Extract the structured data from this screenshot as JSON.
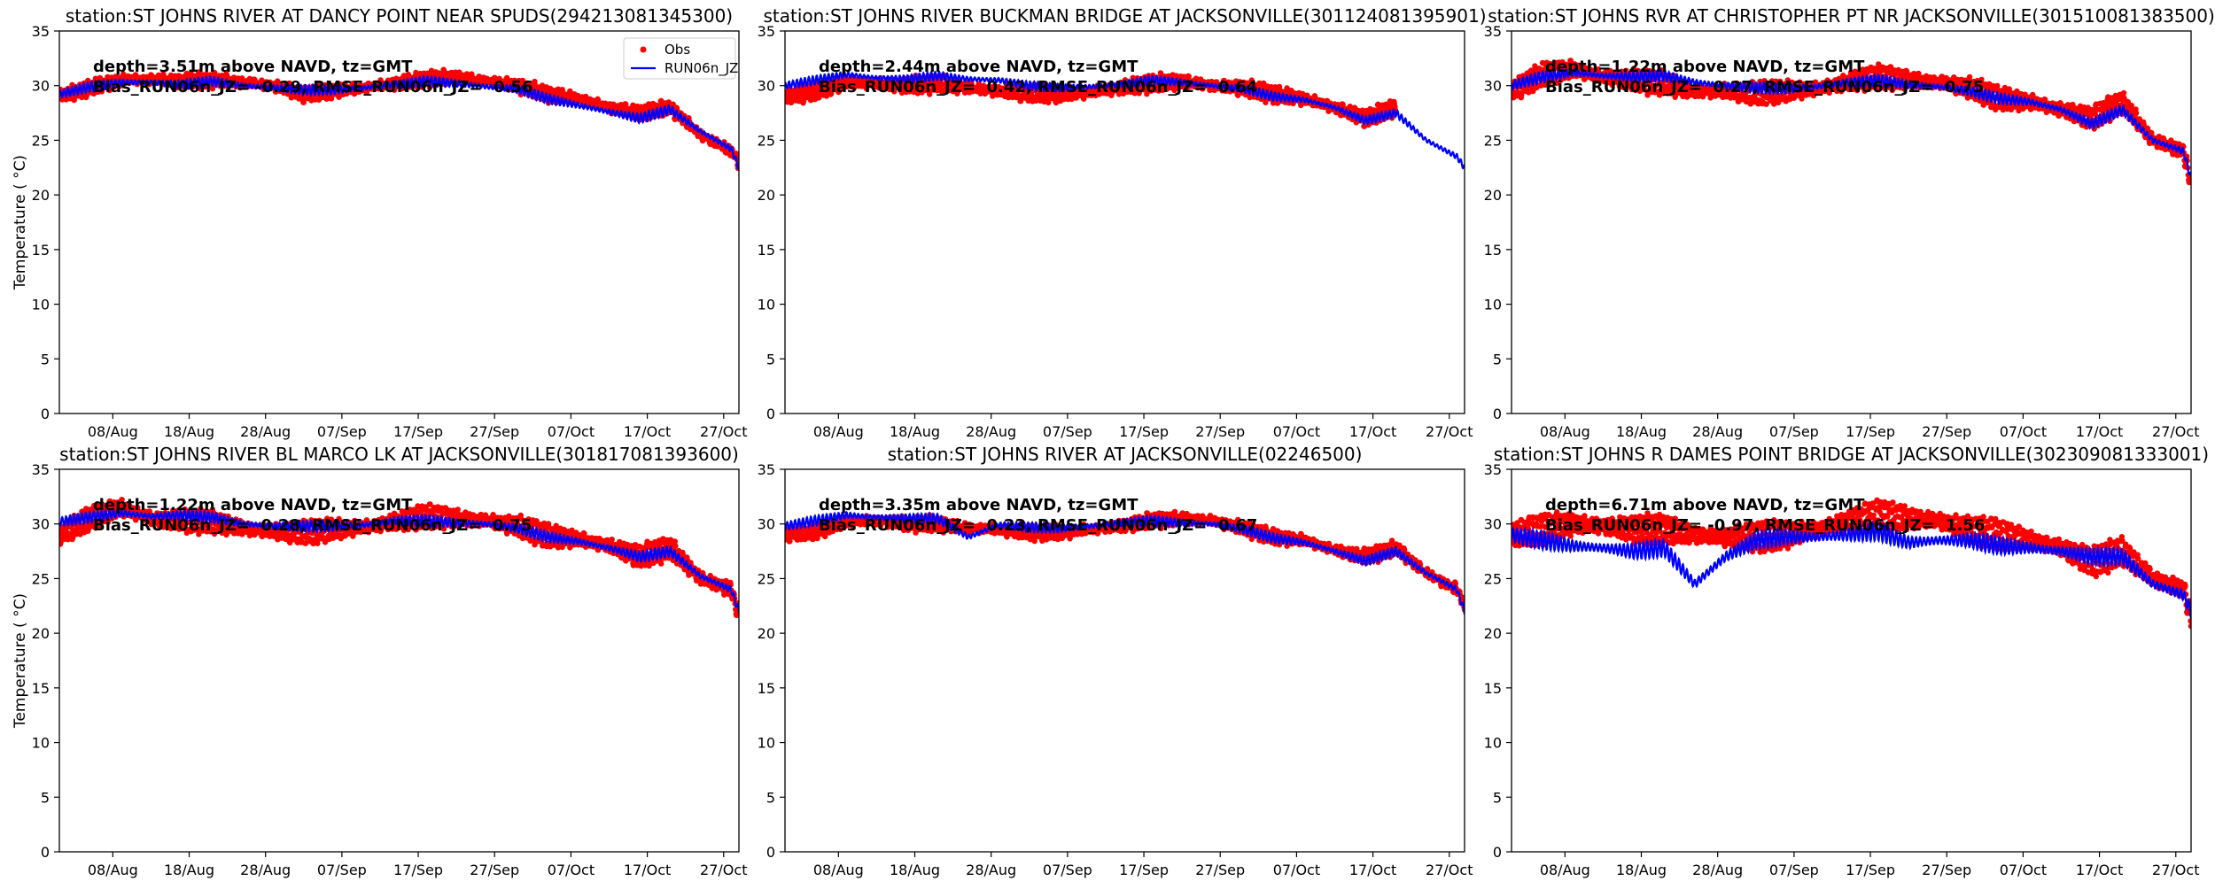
{
  "figure": {
    "colors": {
      "obs": "#ff0000",
      "model": "#0000ff"
    },
    "legend": {
      "obs_label": "Obs",
      "model_label": "RUN06n_JZ",
      "placement": "top-right"
    },
    "ylabel": "Temperature ($^\\circ$C)",
    "ylabel_display": "Temperature ( °C)"
  },
  "chart_data": [
    {
      "type": "line",
      "title": "station:ST JOHNS RIVER AT DANCY POINT NEAR SPUDS(294213081345300)",
      "annotation_depth": "depth=3.51m above NAVD, tz=GMT",
      "annotation_stats": "Bias_RUN06n_JZ= -0.29, RMSE_RUN06n_JZ=  0.56",
      "xlim": [
        "2023-08-01",
        "2023-10-29"
      ],
      "ylim": [
        0,
        35
      ],
      "yticks": [
        "0",
        "5",
        "10",
        "15",
        "20",
        "25",
        "30",
        "35"
      ],
      "xticks": [
        "08/Aug",
        "18/Aug",
        "28/Aug",
        "07/Sep",
        "17/Sep",
        "27/Sep",
        "07/Oct",
        "17/Oct",
        "27/Oct"
      ],
      "x_day_offsets": [
        0,
        4,
        8,
        12,
        16,
        20,
        24,
        28,
        32,
        36,
        40,
        44,
        48,
        52,
        56,
        60,
        64,
        68,
        72,
        76,
        80,
        84,
        88,
        89
      ],
      "series": [
        {
          "name": "Obs",
          "style": "dots",
          "tidal_amplitude": 0.6,
          "values": [
            29,
            29.8,
            30.5,
            30.6,
            30.4,
            30.5,
            30.3,
            30.0,
            29.2,
            29.5,
            29.8,
            30.2,
            30.6,
            30.8,
            30.4,
            30.0,
            29.2,
            28.8,
            28.0,
            27.5,
            28.0,
            25.5,
            24.0,
            23.0
          ]
        },
        {
          "name": "RUN06n_JZ",
          "style": "line",
          "tidal_amplitude": 0.45,
          "values": [
            29.2,
            29.9,
            30.3,
            30.3,
            30.1,
            30.4,
            30.0,
            29.8,
            29.6,
            29.6,
            29.8,
            30.1,
            30.4,
            30.2,
            29.9,
            29.7,
            28.8,
            28.2,
            27.6,
            27.0,
            27.8,
            25.8,
            24.2,
            22.5
          ]
        }
      ],
      "show_legend": true
    },
    {
      "type": "line",
      "title": "station:ST JOHNS RIVER BUCKMAN BRIDGE AT JACKSONVILLE(301124081395901)",
      "annotation_depth": "depth=2.44m above NAVD, tz=GMT",
      "annotation_stats": "Bias_RUN06n_JZ=  0.42, RMSE_RUN06n_JZ=  0.64",
      "xlim": [
        "2023-08-01",
        "2023-10-29"
      ],
      "ylim": [
        0,
        35
      ],
      "yticks": [
        "0",
        "5",
        "10",
        "15",
        "20",
        "25",
        "30",
        "35"
      ],
      "xticks": [
        "08/Aug",
        "18/Aug",
        "28/Aug",
        "07/Sep",
        "17/Sep",
        "27/Sep",
        "07/Oct",
        "17/Oct",
        "27/Oct"
      ],
      "x_day_offsets": [
        0,
        4,
        8,
        12,
        16,
        20,
        24,
        28,
        32,
        36,
        40,
        44,
        48,
        52,
        56,
        60,
        64,
        68,
        72,
        76,
        80,
        84,
        88,
        89
      ],
      "series": [
        {
          "name": "Obs",
          "style": "dots",
          "tidal_amplitude": 0.7,
          "values": [
            29,
            29.5,
            30.3,
            30.2,
            30.0,
            30.2,
            29.8,
            29.5,
            29.3,
            29.2,
            29.4,
            29.8,
            30.2,
            30.4,
            30.0,
            29.8,
            29.2,
            28.8,
            28.0,
            27.0,
            28.0,
            null,
            null,
            null
          ]
        },
        {
          "name": "RUN06n_JZ",
          "style": "line",
          "tidal_amplitude": 0.4,
          "values": [
            30.0,
            30.5,
            31.0,
            30.7,
            30.6,
            30.9,
            30.6,
            30.5,
            30.0,
            29.8,
            29.9,
            30.1,
            30.5,
            30.3,
            30.0,
            29.7,
            29.0,
            28.7,
            28.0,
            26.8,
            27.5,
            25.0,
            23.5,
            22.5
          ]
        }
      ],
      "show_legend": false
    },
    {
      "type": "line",
      "title": "station:ST JOHNS RVR AT CHRISTOPHER PT NR JACKSONVILLE(301510081383500)",
      "annotation_depth": "depth=1.22m above NAVD, tz=GMT",
      "annotation_stats": "Bias_RUN06n_JZ=  0.27, RMSE_RUN06n_JZ=  0.75",
      "xlim": [
        "2023-08-01",
        "2023-10-29"
      ],
      "ylim": [
        0,
        35
      ],
      "yticks": [
        "0",
        "5",
        "10",
        "15",
        "20",
        "25",
        "30",
        "35"
      ],
      "xticks": [
        "08/Aug",
        "18/Aug",
        "28/Aug",
        "07/Sep",
        "17/Sep",
        "27/Sep",
        "07/Oct",
        "17/Oct",
        "27/Oct"
      ],
      "x_day_offsets": [
        0,
        4,
        8,
        12,
        16,
        20,
        24,
        28,
        32,
        36,
        40,
        44,
        48,
        52,
        56,
        60,
        64,
        68,
        72,
        76,
        80,
        84,
        88,
        89
      ],
      "series": [
        {
          "name": "Obs",
          "style": "dots",
          "tidal_amplitude": 1.0,
          "values": [
            29.5,
            31.0,
            31.5,
            30.8,
            30.5,
            30.2,
            29.5,
            29.5,
            29.3,
            29.5,
            29.7,
            30.3,
            30.8,
            30.5,
            30.3,
            29.8,
            28.8,
            28.5,
            27.8,
            27.0,
            28.5,
            25.0,
            24.0,
            21.0
          ]
        },
        {
          "name": "RUN06n_JZ",
          "style": "line",
          "tidal_amplitude": 0.5,
          "values": [
            30.0,
            30.8,
            31.2,
            30.9,
            30.8,
            30.9,
            30.3,
            30.0,
            29.8,
            29.7,
            29.9,
            30.3,
            30.5,
            30.1,
            29.9,
            29.5,
            28.8,
            28.5,
            27.8,
            26.5,
            27.8,
            25.0,
            24.0,
            21.5
          ]
        }
      ],
      "show_legend": false
    },
    {
      "type": "line",
      "title": "station:ST JOHNS RIVER BL MARCO LK AT JACKSONVILLE(301817081393600)",
      "annotation_depth": "depth=1.22m above NAVD, tz=GMT",
      "annotation_stats": "Bias_RUN06n_JZ=  0.28, RMSE_RUN06n_JZ=  0.75",
      "xlim": [
        "2023-08-01",
        "2023-10-29"
      ],
      "ylim": [
        0,
        35
      ],
      "yticks": [
        "0",
        "5",
        "10",
        "15",
        "20",
        "25",
        "30",
        "35"
      ],
      "xticks": [
        "08/Aug",
        "18/Aug",
        "28/Aug",
        "07/Sep",
        "17/Sep",
        "27/Sep",
        "07/Oct",
        "17/Oct",
        "27/Oct"
      ],
      "x_day_offsets": [
        0,
        4,
        8,
        12,
        16,
        20,
        24,
        28,
        32,
        36,
        40,
        44,
        48,
        52,
        56,
        60,
        64,
        68,
        72,
        76,
        80,
        84,
        88,
        89
      ],
      "series": [
        {
          "name": "Obs",
          "style": "dots",
          "tidal_amplitude": 1.0,
          "values": [
            29.0,
            30.5,
            31.5,
            30.5,
            30.3,
            30.2,
            29.6,
            29.3,
            29.2,
            29.5,
            29.7,
            30.2,
            30.7,
            30.5,
            30.3,
            29.8,
            28.9,
            28.6,
            28.0,
            27.0,
            27.8,
            25.0,
            24.0,
            21.5
          ]
        },
        {
          "name": "RUN06n_JZ",
          "style": "line",
          "tidal_amplitude": 0.5,
          "values": [
            30.2,
            30.6,
            31.0,
            30.7,
            30.8,
            30.6,
            30.0,
            29.8,
            29.8,
            29.8,
            29.9,
            30.3,
            30.3,
            30.1,
            30.0,
            29.6,
            28.8,
            28.4,
            27.8,
            27.0,
            27.5,
            25.2,
            24.0,
            22.0
          ]
        }
      ],
      "show_legend": false
    },
    {
      "type": "line",
      "title": "station:ST JOHNS RIVER AT JACKSONVILLE(02246500)",
      "annotation_depth": "depth=3.35m above NAVD, tz=GMT",
      "annotation_stats": "Bias_RUN06n_JZ=  0.23, RMSE_RUN06n_JZ=  0.67",
      "xlim": [
        "2023-08-01",
        "2023-10-29"
      ],
      "ylim": [
        0,
        35
      ],
      "yticks": [
        "0",
        "5",
        "10",
        "15",
        "20",
        "25",
        "30",
        "35"
      ],
      "xticks": [
        "08/Aug",
        "18/Aug",
        "28/Aug",
        "07/Sep",
        "17/Sep",
        "27/Sep",
        "07/Oct",
        "17/Oct",
        "27/Oct"
      ],
      "x_day_offsets": [
        0,
        4,
        8,
        12,
        16,
        20,
        24,
        28,
        32,
        36,
        40,
        44,
        48,
        52,
        56,
        60,
        64,
        68,
        72,
        76,
        80,
        84,
        88,
        89
      ],
      "series": [
        {
          "name": "Obs",
          "style": "dots",
          "tidal_amplitude": 0.6,
          "values": [
            29.0,
            29.3,
            30.2,
            30.3,
            30.0,
            30.0,
            29.6,
            29.5,
            29.2,
            29.2,
            29.5,
            29.8,
            30.3,
            30.5,
            30.3,
            29.6,
            28.8,
            28.5,
            27.6,
            27.0,
            27.8,
            25.5,
            24.0,
            22.5
          ]
        },
        {
          "name": "RUN06n_JZ",
          "style": "line",
          "tidal_amplitude": 0.45,
          "values": [
            29.8,
            30.3,
            30.8,
            30.6,
            30.5,
            30.5,
            28.8,
            29.9,
            29.7,
            29.6,
            29.8,
            30.1,
            30.3,
            30.1,
            30.0,
            29.5,
            28.7,
            28.3,
            27.5,
            26.6,
            27.5,
            25.5,
            24.0,
            22.0
          ]
        }
      ],
      "show_legend": false
    },
    {
      "type": "line",
      "title": "station:ST JOHNS R DAMES POINT BRIDGE AT JACKSONVILLE(302309081333001)",
      "annotation_depth": "depth=6.71m above NAVD, tz=GMT",
      "annotation_stats": "Bias_RUN06n_JZ= -0.97, RMSE_RUN06n_JZ=  1.56",
      "xlim": [
        "2023-08-01",
        "2023-10-29"
      ],
      "ylim": [
        0,
        35
      ],
      "yticks": [
        "0",
        "5",
        "10",
        "15",
        "20",
        "25",
        "30",
        "35"
      ],
      "xticks": [
        "08/Aug",
        "18/Aug",
        "28/Aug",
        "07/Sep",
        "17/Sep",
        "27/Sep",
        "07/Oct",
        "17/Oct",
        "27/Oct"
      ],
      "x_day_offsets": [
        0,
        4,
        8,
        12,
        16,
        20,
        24,
        28,
        32,
        36,
        40,
        44,
        48,
        52,
        56,
        60,
        64,
        68,
        72,
        76,
        80,
        84,
        88,
        89
      ],
      "series": [
        {
          "name": "Obs",
          "style": "dots",
          "tidal_amplitude": 1.3,
          "values": [
            29.0,
            29.5,
            30.0,
            29.8,
            29.5,
            29.5,
            29.0,
            28.8,
            28.8,
            29.0,
            29.5,
            30.2,
            30.8,
            30.5,
            30.3,
            29.5,
            29.0,
            28.5,
            27.8,
            26.5,
            27.5,
            25.0,
            24.0,
            21.5
          ]
        },
        {
          "name": "RUN06n_JZ",
          "style": "line",
          "tidal_amplitude": 0.8,
          "values": [
            29.0,
            28.5,
            28.0,
            27.8,
            27.5,
            27.8,
            24.5,
            27.0,
            28.5,
            28.8,
            28.8,
            29.0,
            29.3,
            28.3,
            28.5,
            28.5,
            28.0,
            27.8,
            27.5,
            27.0,
            27.0,
            24.5,
            23.5,
            22.0
          ]
        }
      ],
      "show_legend": false
    }
  ]
}
